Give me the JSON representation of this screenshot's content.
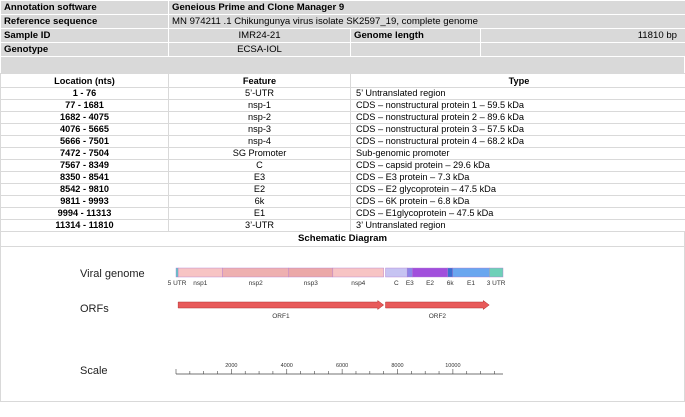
{
  "meta": {
    "annotation_label": "Annotation software",
    "annotation_value": "Geneious Prime and Clone Manager 9",
    "reference_label": "Reference sequence",
    "reference_value": "MN 974211 .1 Chikungunya virus isolate SK2597_19, complete genome",
    "sample_label": "Sample ID",
    "sample_value": "IMR24-21",
    "length_label": "Genome length",
    "length_value": "11810 bp",
    "genotype_label": "Genotype",
    "genotype_value": "ECSA-IOL"
  },
  "table": {
    "headers": {
      "location": "Location (nts)",
      "feature": "Feature",
      "type": "Type"
    },
    "rows": [
      {
        "location": "1 - 76",
        "feature": "5’-UTR",
        "type": "5’ Untranslated region"
      },
      {
        "location": "77 - 1681",
        "feature": "nsp-1",
        "type": "CDS – nonstructural protein 1 – 59.5 kDa"
      },
      {
        "location": "1682 - 4075",
        "feature": "nsp-2",
        "type": "CDS – nonstructural protein 2 – 89.6 kDa"
      },
      {
        "location": "4076 - 5665",
        "feature": "nsp-3",
        "type": "CDS – nonstructural protein 3 – 57.5 kDa"
      },
      {
        "location": "5666 - 7501",
        "feature": "nsp-4",
        "type": "CDS – nonstructural protein 4 – 68.2 kDa"
      },
      {
        "location": "7472 - 7504",
        "feature": "SG Promoter",
        "type": "Sub-genomic promoter"
      },
      {
        "location": "7567 - 8349",
        "feature": "C",
        "type": "CDS – capsid protein – 29.6 kDa"
      },
      {
        "location": "8350 - 8541",
        "feature": "E3",
        "type": "CDS – E3 protein – 7.3 kDa"
      },
      {
        "location": "8542 - 9810",
        "feature": "E2",
        "type": "CDS – E2 glycoprotein – 47.5 kDa"
      },
      {
        "location": "9811 - 9993",
        "feature": "6k",
        "type": "CDS – 6K protein – 6.8 kDa"
      },
      {
        "location": "9994 - 11313",
        "feature": "E1",
        "type": "CDS – E1glycoprotein – 47.5 kDa"
      },
      {
        "location": "11314 - 11810",
        "feature": "3’-UTR",
        "type": "3’ Untranslated region"
      }
    ]
  },
  "schematic": {
    "title": "Schematic Diagram",
    "genome_total": 11810,
    "row_labels": {
      "genome": "Viral genome",
      "orfs": "ORFs",
      "scale": "Scale"
    },
    "segments": [
      {
        "name": "5 UTR",
        "start": 1,
        "end": 76,
        "color": "#5fc7c7"
      },
      {
        "name": "nsp1",
        "start": 77,
        "end": 1681,
        "color": "#f7c4c4"
      },
      {
        "name": "nsp2",
        "start": 1682,
        "end": 4075,
        "color": "#eeb0b0"
      },
      {
        "name": "nsp3",
        "start": 4076,
        "end": 5665,
        "color": "#eba8a8"
      },
      {
        "name": "nsp4",
        "start": 5666,
        "end": 7501,
        "color": "#f7c4c4"
      },
      {
        "name": "C",
        "start": 7567,
        "end": 8349,
        "color": "#c6c3f2"
      },
      {
        "name": "E3",
        "start": 8350,
        "end": 8541,
        "color": "#8c85e8"
      },
      {
        "name": "E2",
        "start": 8542,
        "end": 9810,
        "color": "#a14fdc"
      },
      {
        "name": "6k",
        "start": 9811,
        "end": 9993,
        "color": "#3b6fd0"
      },
      {
        "name": "E1",
        "start": 9994,
        "end": 11313,
        "color": "#6aa6ef"
      },
      {
        "name": "3 UTR",
        "start": 11314,
        "end": 11810,
        "color": "#6ed0b8"
      }
    ],
    "orfs": [
      {
        "name": "ORF1",
        "start": 77,
        "end": 7501,
        "color": "#e85a5a"
      },
      {
        "name": "ORF2",
        "start": 7567,
        "end": 11313,
        "color": "#e85a5a"
      }
    ],
    "scale_ticks": [
      2000,
      4000,
      6000,
      8000,
      10000
    ],
    "scale_tick_labels": [
      "2000",
      "4000",
      "6000",
      "8000",
      "10000"
    ]
  }
}
